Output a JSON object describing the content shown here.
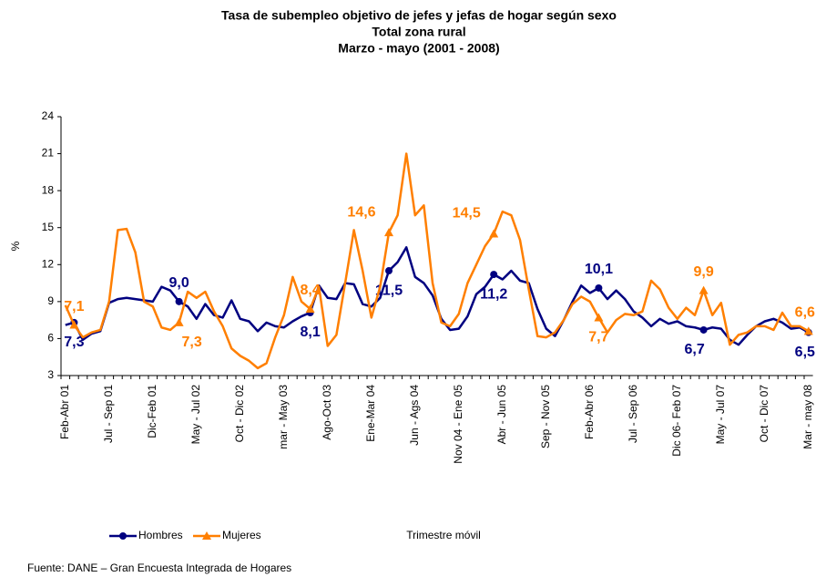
{
  "chart_data": {
    "type": "line",
    "title": "Tasa de subempleo objetivo de jefes y jefas de hogar según sexo",
    "subtitle": [
      "Total zona rural",
      "Marzo - mayo (2001 - 2008)"
    ],
    "y_label": "%",
    "x_label": "Trimestre móvil",
    "source": "Fuente: DANE – Gran Encuesta Integrada de Hogares",
    "categories": [
      "Feb-Abr 01",
      null,
      null,
      null,
      null,
      "Jul - Sep 01",
      null,
      null,
      null,
      null,
      "Dic-Feb 01",
      null,
      null,
      null,
      null,
      "May - Jul 02",
      null,
      null,
      null,
      null,
      "Oct - Dic 02",
      null,
      null,
      null,
      null,
      "mar - May 03",
      null,
      null,
      null,
      null,
      "Ago-Oct 03",
      null,
      null,
      null,
      null,
      "Ene-Mar 04",
      null,
      null,
      null,
      null,
      "Jun - Ags 04",
      null,
      null,
      null,
      null,
      "Nov 04 - Ene 05",
      null,
      null,
      null,
      null,
      "Abr - Jun 05",
      null,
      null,
      null,
      null,
      "Sep - Nov 05",
      null,
      null,
      null,
      null,
      "Feb-Abr 06",
      null,
      null,
      null,
      null,
      "Jul - Sep 06",
      null,
      null,
      null,
      null,
      "Dic  06- Feb 07",
      null,
      null,
      null,
      null,
      "May - Jul 07",
      null,
      null,
      null,
      null,
      "Oct - Dic 07",
      null,
      null,
      null,
      null,
      "Mar - may 08"
    ],
    "ylim": [
      3,
      24
    ],
    "yticks": [
      3,
      6,
      9,
      12,
      15,
      18,
      21,
      24
    ],
    "legend": "bottom-left",
    "series": [
      {
        "name": "Hombres",
        "color": "#000080",
        "marker": "circle",
        "values": [
          7.1,
          7.3,
          5.9,
          6.4,
          6.6,
          8.9,
          9.2,
          9.3,
          9.2,
          9.1,
          9.0,
          10.2,
          9.9,
          9.0,
          8.6,
          7.6,
          8.8,
          7.9,
          7.7,
          9.1,
          7.6,
          7.4,
          6.6,
          7.3,
          7.0,
          6.9,
          7.4,
          7.8,
          8.1,
          10.3,
          9.3,
          9.2,
          10.5,
          10.4,
          8.8,
          8.6,
          9.3,
          11.5,
          12.2,
          13.4,
          11.0,
          10.5,
          9.5,
          7.6,
          6.7,
          6.8,
          7.8,
          9.6,
          10.2,
          11.2,
          10.8,
          11.5,
          10.7,
          10.5,
          8.4,
          6.8,
          6.2,
          7.5,
          9.0,
          10.3,
          9.7,
          10.1,
          9.2,
          9.9,
          9.2,
          8.2,
          7.7,
          7.0,
          7.6,
          7.2,
          7.4,
          7.0,
          6.9,
          6.7,
          6.9,
          6.8,
          5.9,
          5.5,
          6.3,
          7.0,
          7.4,
          7.6,
          7.3,
          6.8,
          6.9,
          6.5
        ],
        "value_labels": [
          null,
          "7,3",
          null,
          null,
          null,
          null,
          null,
          null,
          null,
          null,
          null,
          null,
          null,
          "9,0",
          null,
          null,
          null,
          null,
          null,
          null,
          null,
          null,
          null,
          null,
          null,
          null,
          null,
          null,
          "8,1",
          null,
          null,
          null,
          null,
          null,
          null,
          null,
          null,
          "11,5",
          null,
          null,
          null,
          null,
          null,
          null,
          null,
          null,
          null,
          null,
          null,
          "11,2",
          null,
          null,
          null,
          null,
          null,
          null,
          null,
          null,
          null,
          null,
          null,
          "10,1",
          null,
          null,
          null,
          null,
          null,
          null,
          null,
          null,
          null,
          null,
          null,
          "6,7",
          null,
          null,
          null,
          null,
          null,
          null,
          null,
          null,
          null,
          null,
          null,
          "6,5"
        ]
      },
      {
        "name": "Mujeres",
        "color": "#ff7f00",
        "marker": "triangle",
        "values": [
          8.7,
          7.1,
          6.1,
          6.5,
          6.7,
          9.0,
          14.8,
          14.9,
          13.0,
          9.0,
          8.6,
          6.9,
          6.7,
          7.3,
          9.8,
          9.3,
          9.8,
          8.2,
          7.0,
          5.2,
          4.6,
          4.2,
          3.6,
          4.0,
          6.1,
          7.9,
          11.0,
          9.0,
          8.4,
          10.2,
          5.4,
          6.3,
          10.5,
          14.8,
          11.5,
          7.7,
          10.2,
          14.6,
          16.0,
          21.0,
          16.0,
          16.8,
          10.5,
          7.3,
          7.0,
          8.0,
          10.5,
          12.0,
          13.5,
          14.5,
          16.3,
          16.0,
          14.0,
          10.0,
          6.2,
          6.1,
          6.5,
          7.5,
          8.8,
          9.4,
          9.0,
          7.7,
          6.5,
          7.5,
          8.0,
          7.9,
          8.2,
          10.7,
          10.0,
          8.5,
          7.6,
          8.5,
          7.9,
          9.9,
          7.9,
          8.9,
          5.5,
          6.3,
          6.5,
          7.0,
          7.0,
          6.7,
          8.1,
          7.0,
          7.0,
          6.6
        ],
        "value_labels": [
          null,
          "7,1",
          null,
          null,
          null,
          null,
          null,
          null,
          null,
          null,
          null,
          null,
          null,
          "7,3",
          null,
          null,
          null,
          null,
          null,
          null,
          null,
          null,
          null,
          null,
          null,
          null,
          null,
          null,
          "8,4",
          null,
          null,
          null,
          null,
          null,
          null,
          null,
          null,
          "14,6",
          null,
          null,
          null,
          null,
          null,
          null,
          null,
          null,
          null,
          null,
          null,
          "14,5",
          null,
          null,
          null,
          null,
          null,
          null,
          null,
          null,
          null,
          null,
          null,
          "7,7",
          null,
          null,
          null,
          null,
          null,
          null,
          null,
          null,
          null,
          null,
          null,
          "9,9",
          null,
          null,
          null,
          null,
          null,
          null,
          null,
          null,
          null,
          null,
          null,
          "6,6"
        ]
      }
    ]
  }
}
